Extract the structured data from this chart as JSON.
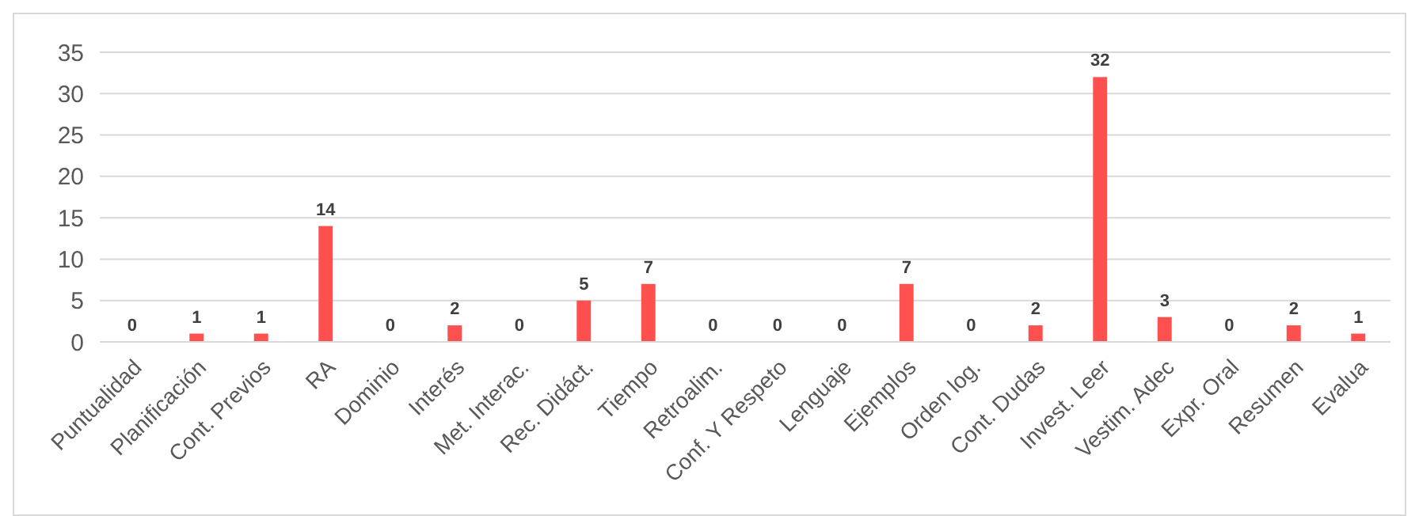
{
  "chart_data": {
    "type": "bar",
    "categories": [
      "Puntualidad",
      "Planificación",
      "Cont. Previos",
      "RA",
      "Dominio",
      "Interés",
      "Met. Interac.",
      "Rec. Didáct.",
      "Tiempo",
      "Retroalim.",
      "Conf. Y Respeto",
      "Lenguaje",
      "Ejemplos",
      "Orden log.",
      "Cont. Dudas",
      "Invest. Leer",
      "Vestim. Adec",
      "Expr. Oral",
      "Resumen",
      "Evalua"
    ],
    "values": [
      0,
      1,
      1,
      14,
      0,
      2,
      0,
      5,
      7,
      0,
      0,
      0,
      7,
      0,
      2,
      32,
      3,
      0,
      2,
      1
    ],
    "color": "#ff5050",
    "ylim": [
      0,
      35
    ],
    "yticks": [
      0,
      5,
      10,
      15,
      20,
      25,
      30,
      35
    ],
    "grid": "y",
    "data_labels": true
  }
}
